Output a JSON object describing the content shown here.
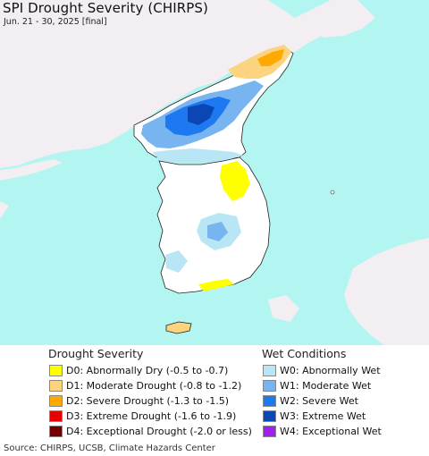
{
  "map": {
    "title": "SPI Drought Severity (CHIRPS)",
    "subtitle": "Jun. 21 - 30, 2025 [final]",
    "colors": {
      "sea": "#b3f5f0",
      "land": "#ffffff",
      "outside_land": "#f2eef2",
      "border": "#222222"
    }
  },
  "legend": {
    "drought_title": "Drought Severity",
    "drought_items": [
      {
        "label": "D0: Abnormally Dry (-0.5 to -0.7)",
        "color": "#ffff00"
      },
      {
        "label": "D1: Moderate Drought (-0.8 to -1.2)",
        "color": "#fcd37f"
      },
      {
        "label": "D2: Severe Drought (-1.3 to -1.5)",
        "color": "#ffaa00"
      },
      {
        "label": "D3: Extreme Drought (-1.6 to -1.9)",
        "color": "#e60000"
      },
      {
        "label": "D4: Exceptional Drought (-2.0 or less)",
        "color": "#730000"
      }
    ],
    "wet_title": "Wet Conditions",
    "wet_items": [
      {
        "label": "W0: Abnormally Wet",
        "color": "#b9e6f5"
      },
      {
        "label": "W1: Moderate Wet",
        "color": "#78b4f0"
      },
      {
        "label": "W2: Severe Wet",
        "color": "#1e78f0"
      },
      {
        "label": "W3: Extreme Wet",
        "color": "#0a46b4"
      },
      {
        "label": "W4: Exceptional Wet",
        "color": "#a020f0"
      }
    ]
  },
  "source": "Source: CHIRPS, UCSB, Climate Hazards Center"
}
